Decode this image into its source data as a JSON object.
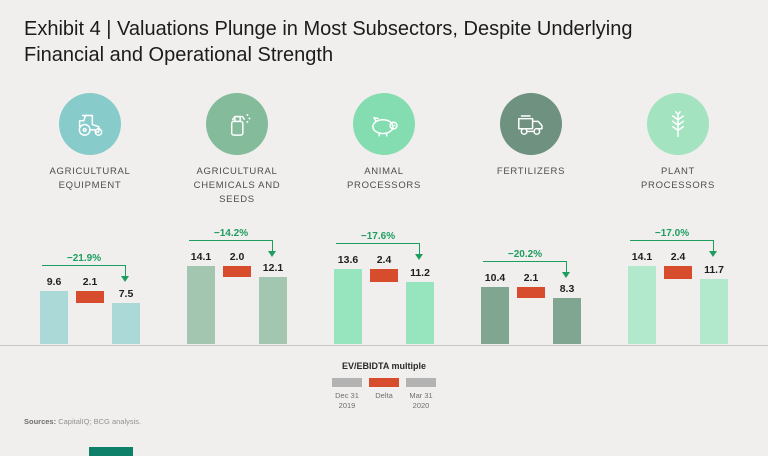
{
  "header": {
    "title": "Exhibit 4 | Valuations Plunge in Most Subsectors, Despite Underlying\nFinancial and Operational Strength"
  },
  "chart_data": {
    "type": "bar",
    "title": "EV/EBIDTA multiple",
    "legend_position": "bottom",
    "legend": [
      {
        "label": "Dec 31 2019",
        "color": "#b3b3b3"
      },
      {
        "label": "Delta",
        "color": "#d84c2e"
      },
      {
        "label": "Mar 31 2020",
        "color": "#b3b3b3"
      }
    ],
    "delta_color": "#d84c2e",
    "pct_color": "#1d9e5f",
    "groups": [
      {
        "name": "AGRICULTURAL EQUIPMENT",
        "icon": "tractor-icon",
        "circle_color": "#87cbca",
        "bar_color": "#aad9d8",
        "values": {
          "dec31_2019": 9.6,
          "delta": 2.1,
          "mar31_2020": 7.5
        },
        "pct_change": "−21.9%"
      },
      {
        "name": "AGRICULTURAL CHEMICALS AND SEEDS",
        "icon": "spray-bottle-icon",
        "circle_color": "#83bb9b",
        "bar_color": "#a3c6b1",
        "values": {
          "dec31_2019": 14.1,
          "delta": 2.0,
          "mar31_2020": 12.1
        },
        "pct_change": "−14.2%"
      },
      {
        "name": "ANIMAL PROCESSORS",
        "icon": "pig-icon",
        "circle_color": "#83ddb0",
        "bar_color": "#97e5bf",
        "values": {
          "dec31_2019": 13.6,
          "delta": 2.4,
          "mar31_2020": 11.2
        },
        "pct_change": "−17.6%"
      },
      {
        "name": "FERTILIZERS",
        "icon": "truck-icon",
        "circle_color": "#6f9280",
        "bar_color": "#80a591",
        "values": {
          "dec31_2019": 10.4,
          "delta": 2.1,
          "mar31_2020": 8.3
        },
        "pct_change": "−20.2%"
      },
      {
        "name": "PLANT PROCESSORS",
        "icon": "wheat-icon",
        "circle_color": "#a3e3c0",
        "bar_color": "#b2e9cc",
        "values": {
          "dec31_2019": 14.1,
          "delta": 2.4,
          "mar31_2020": 11.7
        },
        "pct_change": "−17.0%"
      }
    ]
  },
  "footer": {
    "sources_label": "Sources:",
    "sources_text": " CapitalIQ; BCG analysis."
  }
}
